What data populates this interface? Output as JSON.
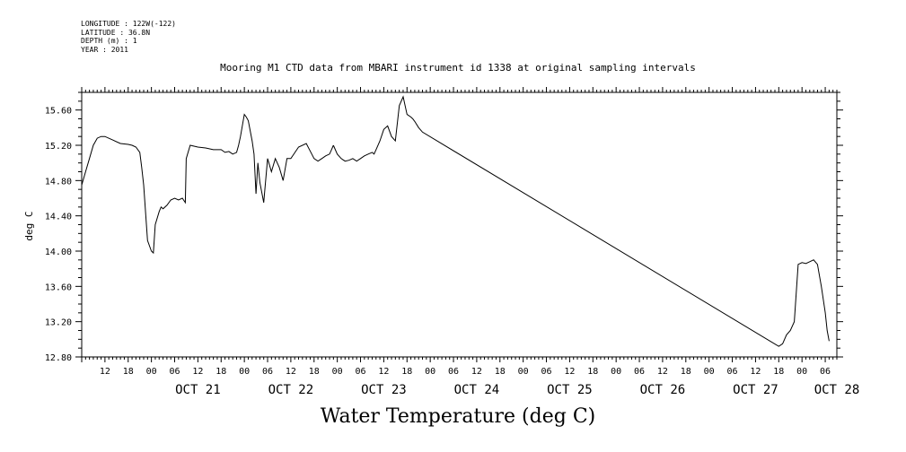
{
  "meta": {
    "longitude": "LONGITUDE : 122W(-122)",
    "latitude": "LATITUDE : 36.8N",
    "depth": "DEPTH (m) : 1",
    "year": "YEAR : 2011"
  },
  "footer_title": "Water Temperature (deg C)",
  "chart_data": {
    "type": "line",
    "title": "Mooring M1 CTD data from MBARI instrument id 1338 at original sampling intervals",
    "xlabel": "",
    "ylabel": "deg C",
    "ylim": [
      12.8,
      15.8
    ],
    "xlim": [
      "2011-10-20T06:00",
      "2011-10-28T09:00"
    ],
    "y_ticks": [
      "15.60",
      "15.20",
      "14.80",
      "14.40",
      "14.00",
      "13.60",
      "13.20",
      "12.80"
    ],
    "x_hour_labels": [
      "12",
      "18",
      "00",
      "06",
      "12",
      "18",
      "00",
      "06",
      "12",
      "18",
      "00",
      "06",
      "12",
      "18",
      "00",
      "06",
      "12",
      "18",
      "00",
      "06",
      "12",
      "18",
      "00",
      "06",
      "12",
      "18",
      "00",
      "06",
      "12",
      "18",
      "00",
      "06",
      "12",
      "18",
      "00",
      "06",
      "12",
      "18",
      "00",
      "06"
    ],
    "x_day_labels": [
      "OCT 21",
      "OCT 22",
      "OCT 23",
      "OCT 24",
      "OCT 25",
      "OCT 26",
      "OCT 27",
      "OCT 28"
    ],
    "series": [
      {
        "x": [
          "2011-10-20T06:00",
          "2011-10-20T07:00",
          "2011-10-20T08:00",
          "2011-10-20T09:00",
          "2011-10-20T10:00",
          "2011-10-20T11:00",
          "2011-10-20T12:00",
          "2011-10-20T14:00",
          "2011-10-20T16:00",
          "2011-10-20T18:00",
          "2011-10-20T19:00",
          "2011-10-20T20:00",
          "2011-10-20T21:00",
          "2011-10-20T21:30",
          "2011-10-20T22:00",
          "2011-10-20T23:00",
          "2011-10-21T00:00",
          "2011-10-21T00:30",
          "2011-10-21T01:00",
          "2011-10-21T02:00",
          "2011-10-21T02:30",
          "2011-10-21T03:00",
          "2011-10-21T04:00",
          "2011-10-21T05:00",
          "2011-10-21T06:00",
          "2011-10-21T07:00",
          "2011-10-21T08:00",
          "2011-10-21T08:45",
          "2011-10-21T09:00",
          "2011-10-21T10:00",
          "2011-10-21T12:00",
          "2011-10-21T14:00",
          "2011-10-21T16:00",
          "2011-10-21T18:00",
          "2011-10-21T19:00",
          "2011-10-21T20:00",
          "2011-10-21T21:00",
          "2011-10-21T22:00",
          "2011-10-21T22:30",
          "2011-10-21T23:00",
          "2011-10-22T00:00",
          "2011-10-22T00:30",
          "2011-10-22T01:00",
          "2011-10-22T02:00",
          "2011-10-22T02:30",
          "2011-10-22T03:00",
          "2011-10-22T03:30",
          "2011-10-22T04:00",
          "2011-10-22T05:00",
          "2011-10-22T06:00",
          "2011-10-22T07:00",
          "2011-10-22T08:00",
          "2011-10-22T09:00",
          "2011-10-22T10:00",
          "2011-10-22T11:00",
          "2011-10-22T12:00",
          "2011-10-22T14:00",
          "2011-10-22T16:00",
          "2011-10-22T18:00",
          "2011-10-22T19:00",
          "2011-10-22T20:00",
          "2011-10-22T21:00",
          "2011-10-22T22:00",
          "2011-10-22T22:30",
          "2011-10-22T23:00"
        ],
        "y": [
          14.75,
          14.9,
          15.05,
          15.2,
          15.28,
          15.3,
          15.3,
          15.26,
          15.22,
          15.21,
          15.2,
          15.18,
          15.12,
          14.95,
          14.75,
          14.12,
          14.0,
          13.98,
          14.3,
          14.45,
          14.5,
          14.48,
          14.52,
          14.58,
          14.6,
          14.58,
          14.6,
          14.55,
          15.05,
          15.2,
          15.18,
          15.17,
          15.15,
          15.15,
          15.12,
          15.13,
          15.1,
          15.12,
          15.2,
          15.3,
          15.55,
          15.52,
          15.48,
          15.25,
          15.1,
          14.65,
          15.0,
          14.78,
          14.55,
          15.05,
          14.9,
          15.05,
          14.95,
          14.8,
          15.05,
          15.05,
          15.18,
          15.22,
          15.05,
          15.02,
          15.05,
          15.08,
          15.1,
          15.15,
          15.2
        ]
      },
      {
        "x": [
          "2011-10-22T23:00",
          "2011-10-23T00:00",
          "2011-10-23T01:00",
          "2011-10-23T02:00",
          "2011-10-23T03:00",
          "2011-10-23T04:00",
          "2011-10-23T05:00",
          "2011-10-23T06:00",
          "2011-10-23T07:00",
          "2011-10-23T08:00",
          "2011-10-23T09:00",
          "2011-10-23T09:30",
          "2011-10-23T10:00",
          "2011-10-23T11:00",
          "2011-10-23T12:00",
          "2011-10-23T13:00",
          "2011-10-23T14:00",
          "2011-10-23T15:00",
          "2011-10-23T16:00",
          "2011-10-23T17:00",
          "2011-10-23T18:00",
          "2011-10-23T19:00",
          "2011-10-23T19:30",
          "2011-10-23T20:00",
          "2011-10-23T21:00",
          "2011-10-23T22:00",
          "2011-10-27T18:00",
          "2011-10-27T19:00",
          "2011-10-27T20:00",
          "2011-10-27T21:00",
          "2011-10-27T22:00",
          "2011-10-27T23:00",
          "2011-10-28T00:00",
          "2011-10-28T01:00",
          "2011-10-28T02:00",
          "2011-10-28T03:00",
          "2011-10-28T04:00",
          "2011-10-28T05:00",
          "2011-10-28T06:00",
          "2011-10-28T06:30",
          "2011-10-28T07:00"
        ],
        "y": [
          15.2,
          15.1,
          15.05,
          15.02,
          15.03,
          15.05,
          15.02,
          15.05,
          15.08,
          15.1,
          15.12,
          15.1,
          15.15,
          15.25,
          15.38,
          15.42,
          15.3,
          15.25,
          15.65,
          15.75,
          15.55,
          15.52,
          15.5,
          15.47,
          15.4,
          15.35,
          12.92,
          12.95,
          13.05,
          13.1,
          13.2,
          13.85,
          13.87,
          13.86,
          13.88,
          13.9,
          13.85,
          13.6,
          13.3,
          13.1,
          12.98
        ]
      }
    ],
    "grid": false,
    "legend": "none"
  }
}
